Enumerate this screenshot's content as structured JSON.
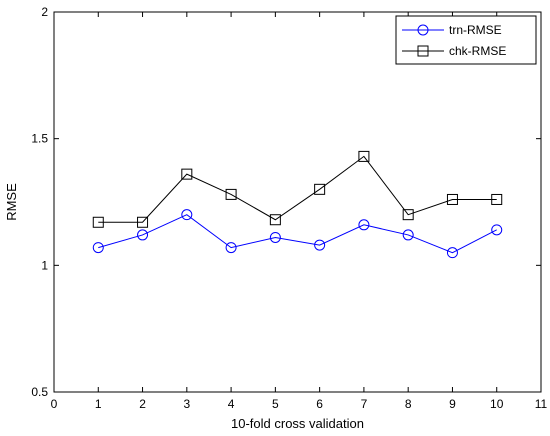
{
  "chart_data": {
    "type": "line",
    "title": "",
    "xlabel": "10-fold cross validation",
    "ylabel": "RMSE",
    "xlim": [
      0,
      11
    ],
    "ylim": [
      0.5,
      2
    ],
    "xticks": [
      "0",
      "1",
      "2",
      "3",
      "4",
      "5",
      "6",
      "7",
      "8",
      "9",
      "10",
      "11"
    ],
    "yticks": [
      "0.5",
      "1",
      "1.5",
      "2"
    ],
    "ytick_values": [
      0.5,
      1,
      1.5,
      2
    ],
    "grid": false,
    "legend_position": "top-right",
    "x": [
      1,
      2,
      3,
      4,
      5,
      6,
      7,
      8,
      9,
      10
    ],
    "series": [
      {
        "name": "trn-RMSE",
        "color": "#0000ff",
        "marker": "circle",
        "values": [
          1.07,
          1.12,
          1.2,
          1.07,
          1.11,
          1.08,
          1.16,
          1.12,
          1.05,
          1.14
        ]
      },
      {
        "name": "chk-RMSE",
        "color": "#000000",
        "marker": "square",
        "values": [
          1.17,
          1.17,
          1.36,
          1.28,
          1.18,
          1.3,
          1.43,
          1.2,
          1.26,
          1.26
        ]
      }
    ]
  }
}
